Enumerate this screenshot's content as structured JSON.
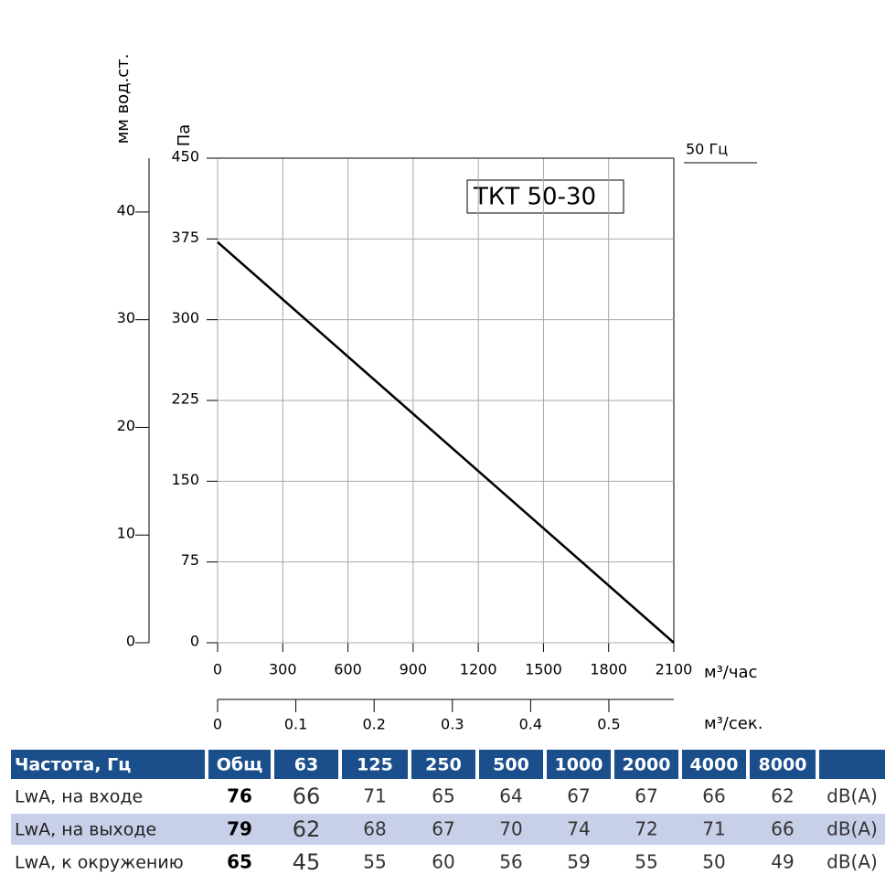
{
  "chart_data": {
    "type": "line",
    "title": "ТКТ 50-30",
    "annotation": "50 Гц",
    "x_label": "м³/час",
    "y_label": "Па",
    "y2_label": "мм вод.ст.",
    "x2_label": "м³/сек.",
    "x": [
      0,
      2100
    ],
    "series": [
      {
        "color": "#000000",
        "values": [
          372,
          0
        ]
      }
    ],
    "xlim": [
      0,
      2100
    ],
    "xticks": [
      0,
      300,
      600,
      900,
      1200,
      1500,
      1800,
      2100
    ],
    "ylim": [
      0,
      450
    ],
    "yticks": [
      0,
      75,
      150,
      225,
      300,
      375,
      450
    ],
    "y2lim": [
      0,
      45
    ],
    "y2ticks": [
      0,
      10,
      20,
      30,
      40
    ],
    "x2lim": [
      0,
      0.583
    ],
    "x2ticks": [
      0,
      0.1,
      0.2,
      0.3,
      0.4,
      0.5
    ],
    "grid": true
  },
  "table": {
    "header": [
      "Частота, Гц",
      "Общ",
      "63",
      "125",
      "250",
      "500",
      "1000",
      "2000",
      "4000",
      "8000"
    ],
    "rows": [
      {
        "label": "LwA, на входе",
        "total": "76",
        "values": [
          "66",
          "71",
          "65",
          "64",
          "67",
          "67",
          "66",
          "62"
        ],
        "unit": "dB(A)"
      },
      {
        "label": "LwA, на выходе",
        "total": "79",
        "values": [
          "62",
          "68",
          "67",
          "70",
          "74",
          "72",
          "71",
          "66"
        ],
        "unit": "dB(A)"
      },
      {
        "label": "LwA, к окружению",
        "total": "65",
        "values": [
          "45",
          "55",
          "60",
          "56",
          "59",
          "55",
          "50",
          "49"
        ],
        "unit": "dB(A)"
      }
    ]
  }
}
